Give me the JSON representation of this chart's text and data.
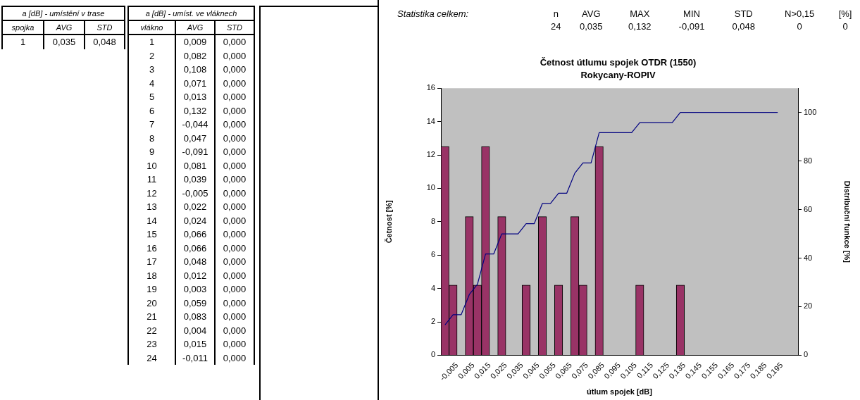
{
  "chart_data": [
    {
      "type": "heatmap",
      "title": "a [dB] - umístění v trase",
      "ylabel": "spojka",
      "categories": [
        "AVG",
        "STD"
      ],
      "y_categories": [
        "1"
      ],
      "cells": [
        [
          0.035,
          0.048
        ]
      ],
      "cell_labels": [
        [
          "0,035",
          "0,048"
        ]
      ]
    },
    {
      "type": "heatmap",
      "title": "a [dB] - umíst. ve vláknech",
      "ylabel": "vlákno",
      "categories": [
        "AVG",
        "STD"
      ],
      "y_categories": [
        "1",
        "2",
        "3",
        "4",
        "5",
        "6",
        "7",
        "8",
        "9",
        "10",
        "11",
        "12",
        "13",
        "14",
        "15",
        "16",
        "17",
        "18",
        "19",
        "20",
        "21",
        "22",
        "23",
        "24"
      ],
      "cells": [
        [
          0.009,
          0.0
        ],
        [
          0.082,
          0.0
        ],
        [
          0.108,
          0.0
        ],
        [
          0.071,
          0.0
        ],
        [
          0.013,
          0.0
        ],
        [
          0.132,
          0.0
        ],
        [
          -0.044,
          0.0
        ],
        [
          0.047,
          0.0
        ],
        [
          -0.091,
          0.0
        ],
        [
          0.081,
          0.0
        ],
        [
          0.039,
          0.0
        ],
        [
          -0.005,
          0.0
        ],
        [
          0.022,
          0.0
        ],
        [
          0.024,
          0.0
        ],
        [
          0.066,
          0.0
        ],
        [
          0.066,
          0.0
        ],
        [
          0.048,
          0.0
        ],
        [
          0.012,
          0.0
        ],
        [
          0.003,
          0.0
        ],
        [
          0.059,
          0.0
        ],
        [
          0.083,
          0.0
        ],
        [
          0.004,
          0.0
        ],
        [
          0.015,
          0.0
        ],
        [
          -0.011,
          0.0
        ]
      ],
      "cell_labels": [
        [
          "0,009",
          "0,000"
        ],
        [
          "0,082",
          "0,000"
        ],
        [
          "0,108",
          "0,000"
        ],
        [
          "0,071",
          "0,000"
        ],
        [
          "0,013",
          "0,000"
        ],
        [
          "0,132",
          "0,000"
        ],
        [
          "-0,044",
          "0,000"
        ],
        [
          "0,047",
          "0,000"
        ],
        [
          "-0,091",
          "0,000"
        ],
        [
          "0,081",
          "0,000"
        ],
        [
          "0,039",
          "0,000"
        ],
        [
          "-0,005",
          "0,000"
        ],
        [
          "0,022",
          "0,000"
        ],
        [
          "0,024",
          "0,000"
        ],
        [
          "0,066",
          "0,000"
        ],
        [
          "0,066",
          "0,000"
        ],
        [
          "0,048",
          "0,000"
        ],
        [
          "0,012",
          "0,000"
        ],
        [
          "0,003",
          "0,000"
        ],
        [
          "0,059",
          "0,000"
        ],
        [
          "0,083",
          "0,000"
        ],
        [
          "0,004",
          "0,000"
        ],
        [
          "0,015",
          "0,000"
        ],
        [
          "-0,011",
          "0,000"
        ]
      ]
    },
    {
      "type": "other",
      "title": "Statistika celkem:",
      "categories": [
        "n",
        "AVG",
        "MAX",
        "MIN",
        "STD",
        "N>0,15",
        "[%]"
      ],
      "annotations": [
        "24",
        "0,035",
        "0,132",
        "-0,091",
        "0,048",
        "0",
        "0"
      ]
    },
    {
      "type": "bar",
      "title": "Četnost útlumu spojek OTDR (1550)",
      "subtitle": "Rokycany-ROPIV",
      "xlabel": "útlum spojek [dB]",
      "ylabel": "Četnost [%]",
      "y2label": "Distribuční funkce [%]",
      "series": [
        {
          "type": "bar",
          "color": "#993366",
          "x": [
            -0.0125,
            -0.0075,
            0.0025,
            0.0075,
            0.0125,
            0.0225,
            0.0375,
            0.0475,
            0.0575,
            0.0675,
            0.0725,
            0.0825,
            0.1075,
            0.1325
          ],
          "values": [
            12.5,
            4.2,
            8.3,
            4.2,
            12.5,
            8.3,
            4.2,
            8.3,
            4.2,
            8.3,
            4.2,
            12.5,
            4.2,
            4.2
          ]
        },
        {
          "type": "line",
          "axis": "y2",
          "color": "#000080",
          "x": [
            -0.0125,
            -0.0075,
            -0.0025,
            0.0025,
            0.0075,
            0.0125,
            0.0175,
            0.0225,
            0.0325,
            0.0375,
            0.0425,
            0.0475,
            0.0525,
            0.0575,
            0.0625,
            0.0675,
            0.0725,
            0.0775,
            0.0825,
            0.1025,
            0.1075,
            0.1275,
            0.1325,
            0.1925
          ],
          "values": [
            12.5,
            16.7,
            16.7,
            25,
            29.2,
            41.7,
            41.7,
            50,
            50,
            54.2,
            54.2,
            62.5,
            62.5,
            66.7,
            66.7,
            75,
            79.2,
            79.2,
            91.7,
            91.7,
            95.8,
            95.8,
            100,
            100
          ]
        }
      ],
      "xlim": [
        -0.015,
        0.205
      ],
      "xticks": [
        {
          "value": -0.015,
          "label": null
        },
        {
          "value": -0.005,
          "label": "-0,005"
        },
        {
          "value": 0.005,
          "label": "0,005"
        },
        {
          "value": 0.015,
          "label": "0,015"
        },
        {
          "value": 0.025,
          "label": "0,025"
        },
        {
          "value": 0.035,
          "label": "0,035"
        },
        {
          "value": 0.045,
          "label": "0,045"
        },
        {
          "value": 0.055,
          "label": "0,055"
        },
        {
          "value": 0.065,
          "label": "0,065"
        },
        {
          "value": 0.075,
          "label": "0,075"
        },
        {
          "value": 0.085,
          "label": "0,085"
        },
        {
          "value": 0.095,
          "label": "0,095"
        },
        {
          "value": 0.105,
          "label": "0,105"
        },
        {
          "value": 0.115,
          "label": "0,115"
        },
        {
          "value": 0.125,
          "label": "0,125"
        },
        {
          "value": 0.135,
          "label": "0,135"
        },
        {
          "value": 0.145,
          "label": "0,145"
        },
        {
          "value": 0.155,
          "label": "0,155"
        },
        {
          "value": 0.165,
          "label": "0,165"
        },
        {
          "value": 0.175,
          "label": "0,175"
        },
        {
          "value": 0.185,
          "label": "0,185"
        },
        {
          "value": 0.195,
          "label": "0,195"
        },
        {
          "value": 0.205,
          "label": null
        }
      ],
      "ylim": [
        0,
        16
      ],
      "yticks": [
        0,
        2,
        4,
        6,
        8,
        10,
        12,
        14,
        16
      ],
      "y2lim": [
        0,
        110
      ],
      "y2ticks": [
        0,
        20,
        40,
        60,
        80,
        100
      ],
      "legend": false,
      "marker": "none",
      "line_style": "solid"
    }
  ]
}
